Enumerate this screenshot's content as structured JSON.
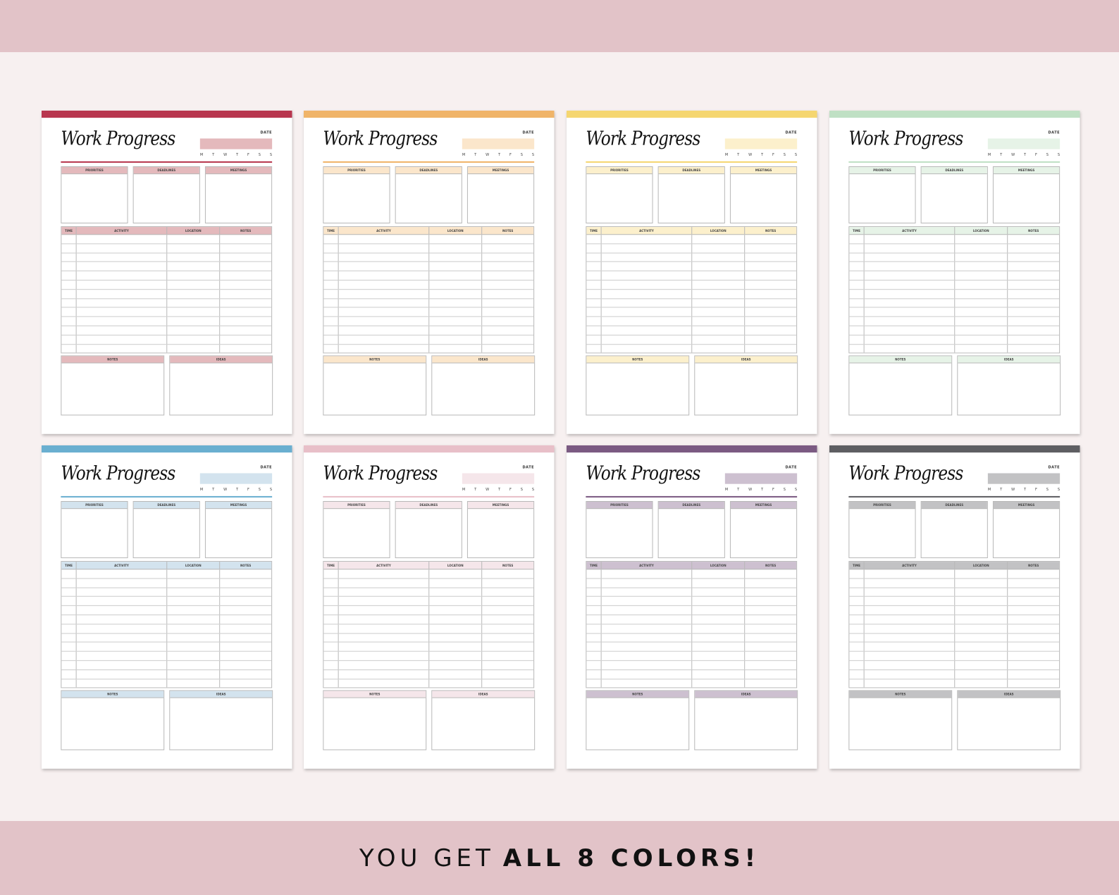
{
  "planner": {
    "title": "Work Progress",
    "date_label": "DATE",
    "days": [
      "M",
      "T",
      "W",
      "T",
      "F",
      "S",
      "S"
    ],
    "top_sections": [
      "PRIORITIES",
      "DEADLINES",
      "MEETINGS"
    ],
    "table_headers": [
      "TIME",
      "ACTIVITY",
      "LOCATION",
      "NOTES"
    ],
    "bottom_sections": [
      "NOTES",
      "IDEAS"
    ]
  },
  "variants": [
    {
      "accent": "#b8364e",
      "fill": "#e4b9bc"
    },
    {
      "accent": "#f0b468",
      "fill": "#fbe6cb"
    },
    {
      "accent": "#f5d670",
      "fill": "#fcf0cc"
    },
    {
      "accent": "#bfe0c4",
      "fill": "#e6f3e7"
    },
    {
      "accent": "#6aafd0",
      "fill": "#d3e3ee"
    },
    {
      "accent": "#e8bfc8",
      "fill": "#f5e6ea"
    },
    {
      "accent": "#7b5a82",
      "fill": "#cdc0d0"
    },
    {
      "accent": "#5e5e62",
      "fill": "#c2c2c4"
    }
  ],
  "banner": {
    "prefix": "YOU GET",
    "emphasis": "ALL 8 COLORS!"
  },
  "colors": {
    "band": "#e2c3c8",
    "background": "#f7f0f0"
  }
}
